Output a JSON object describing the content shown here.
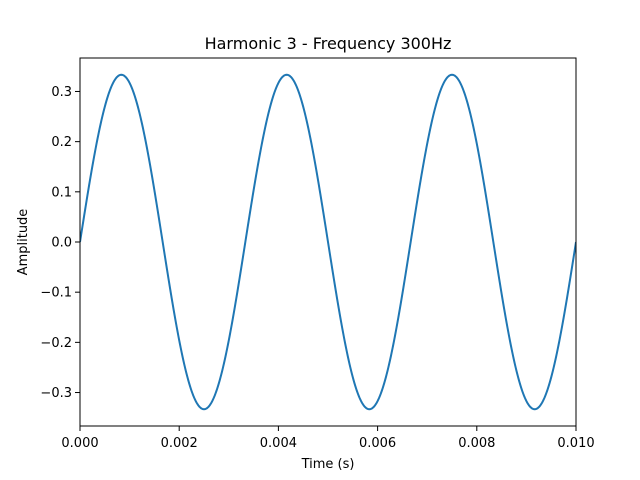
{
  "chart_data": {
    "type": "line",
    "title": "Harmonic 3 - Frequency 300Hz",
    "xlabel": "Time (s)",
    "ylabel": "Amplitude",
    "xlim": [
      0.0,
      0.01
    ],
    "ylim": [
      -0.3667,
      0.3667
    ],
    "xticks": [
      0.0,
      0.002,
      0.004,
      0.006,
      0.008,
      0.01
    ],
    "xtick_labels": [
      "0.000",
      "0.002",
      "0.004",
      "0.006",
      "0.008",
      "0.010"
    ],
    "yticks": [
      -0.3,
      -0.2,
      -0.1,
      0.0,
      0.1,
      0.2,
      0.3
    ],
    "ytick_labels": [
      "−0.3",
      "−0.2",
      "−0.1",
      "0.0",
      "0.1",
      "0.2",
      "0.3"
    ],
    "grid": false,
    "series": [
      {
        "color": "#1f77b4",
        "function": "sine",
        "amplitude": 0.3333,
        "frequency_hz": 300,
        "x": [
          0.0,
          0.000833,
          0.001667,
          0.0025,
          0.003333,
          0.004167,
          0.005,
          0.005833,
          0.006667,
          0.0075,
          0.008333,
          0.009167,
          0.01
        ],
        "y": [
          0.0,
          0.3333,
          0.0,
          -0.3333,
          0.0,
          0.3333,
          0.0,
          -0.3333,
          0.0,
          0.3333,
          0.0,
          -0.3333,
          0.0
        ]
      }
    ]
  }
}
